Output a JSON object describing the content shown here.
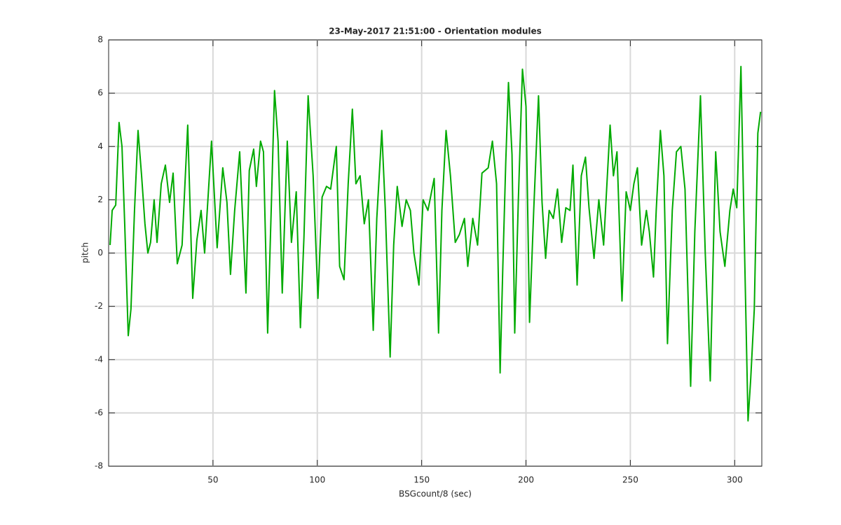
{
  "chart_data": {
    "type": "line",
    "title": "23-May-2017 21:51:00 - Orientation modules",
    "xlabel": "BSGcount/8 (sec)",
    "ylabel": "pitch",
    "color": "#00aa00",
    "grid": true,
    "xlim": [
      0,
      313
    ],
    "ylim": [
      -8,
      8
    ],
    "xticks": [
      50,
      100,
      150,
      200,
      250,
      300
    ],
    "yticks": [
      -8,
      -6,
      -4,
      -2,
      0,
      2,
      4,
      6,
      8
    ],
    "x": [
      0.7,
      1.7,
      3.4,
      5,
      6.4,
      7.7,
      9.4,
      10.7,
      12.4,
      14.1,
      15.8,
      17.4,
      18.8,
      20.1,
      21.8,
      23.2,
      25.2,
      27.2,
      29.2,
      30.9,
      32.9,
      35.2,
      37.9,
      40.3,
      42.3,
      44.3,
      46,
      49.3,
      52,
      54.7,
      56.7,
      58.4,
      60.4,
      62.8,
      65.8,
      67.4,
      69.5,
      70.8,
      72.8,
      74.2,
      76.2,
      77.9,
      79.5,
      81.2,
      83.2,
      85.6,
      87.6,
      89.9,
      91.9,
      93.6,
      95.6,
      98,
      100.3,
      102.3,
      104.4,
      106.4,
      109.1,
      110.7,
      112.8,
      114.8,
      116.8,
      118.5,
      120.5,
      122.5,
      124.5,
      126.8,
      128.5,
      130.9,
      132.6,
      134.9,
      136.6,
      138.3,
      140.6,
      142.6,
      144.6,
      146.3,
      148.7,
      150.7,
      153,
      156,
      158.1,
      159.7,
      161.7,
      163.8,
      166.1,
      168.1,
      170.5,
      172.1,
      174.5,
      176.8,
      178.9,
      181.9,
      183.9,
      185.9,
      187.6,
      188.9,
      190.3,
      191.6,
      193.3,
      194.6,
      196.3,
      198.3,
      200,
      201.7,
      203.7,
      206,
      207.7,
      209.4,
      211.1,
      213.1,
      215.1,
      217.1,
      219.1,
      221.1,
      222.5,
      224.5,
      226.5,
      228.5,
      230.2,
      232.6,
      234.9,
      237.2,
      240.3,
      241.9,
      243.6,
      246,
      248,
      250,
      251.7,
      253.4,
      255.4,
      257.7,
      259.1,
      261.1,
      262.4,
      264.4,
      266.1,
      267.8,
      270.1,
      272.1,
      274.2,
      276.2,
      278.9,
      280.9,
      283.6,
      285.9,
      288.3,
      290.9,
      293,
      295.3,
      297.7,
      299.3,
      301,
      303,
      304.7,
      306.4,
      307.7,
      309.4,
      311.1,
      312.4
    ],
    "values": [
      0.3,
      1.6,
      1.8,
      4.9,
      4,
      1.1,
      -3.1,
      -2.1,
      1.6,
      4.6,
      2.9,
      1.1,
      0,
      0.4,
      2,
      0.4,
      2.6,
      3.3,
      1.9,
      3,
      -0.4,
      0.3,
      4.8,
      -1.7,
      0.5,
      1.6,
      0,
      4.2,
      0.2,
      3.2,
      1.9,
      -0.8,
      1.6,
      3.8,
      -1.5,
      3.1,
      3.9,
      2.5,
      4.2,
      3.8,
      -3,
      1.6,
      6.1,
      4.2,
      -1.5,
      4.2,
      0.4,
      2.3,
      -2.8,
      0.6,
      5.9,
      2.9,
      -1.7,
      2.1,
      2.5,
      2.4,
      4,
      -0.5,
      -1,
      2.6,
      5.4,
      2.6,
      2.9,
      1.1,
      2,
      -2.9,
      1.3,
      4.6,
      1.6,
      -3.9,
      0.3,
      2.5,
      1,
      2,
      1.6,
      0,
      -1.2,
      2,
      1.6,
      2.8,
      -3,
      1.6,
      4.6,
      2.9,
      0.4,
      0.7,
      1.3,
      -0.5,
      1.3,
      0.3,
      3,
      3.2,
      4.2,
      2.6,
      -4.5,
      -0.5,
      3.4,
      6.4,
      3.7,
      -3,
      1.9,
      6.9,
      5.5,
      -2.6,
      1.6,
      5.9,
      1.9,
      -0.2,
      1.6,
      1.3,
      2.4,
      0.4,
      1.7,
      1.6,
      3.3,
      -1.2,
      2.9,
      3.6,
      1.7,
      -0.2,
      2,
      0.3,
      4.8,
      2.9,
      3.8,
      -1.8,
      2.3,
      1.6,
      2.6,
      3.2,
      0.3,
      1.6,
      0.8,
      -0.9,
      1.6,
      4.6,
      2.9,
      -3.4,
      1.6,
      3.8,
      4,
      2.4,
      -5,
      0.8,
      5.9,
      0,
      -4.8,
      3.8,
      0.8,
      -0.5,
      1.6,
      2.4,
      1.7,
      7,
      0.2,
      -6.3,
      -4.7,
      -2.1,
      4.5,
      5.3
    ]
  }
}
